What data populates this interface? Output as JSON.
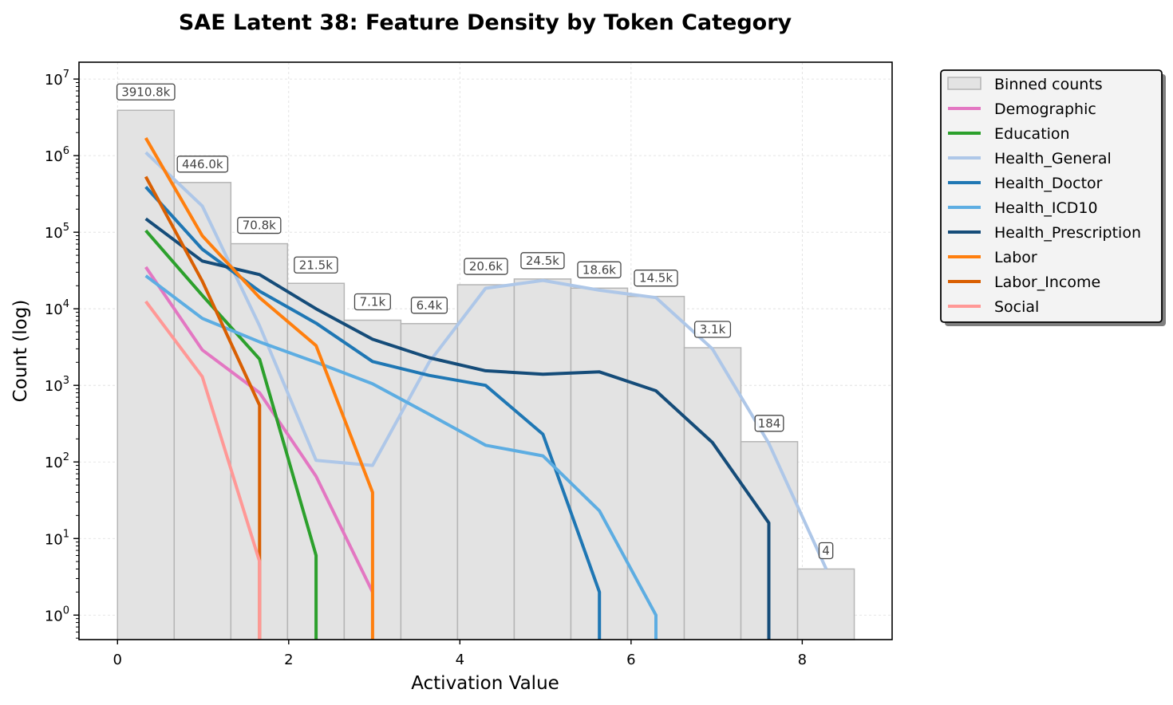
{
  "chart_data": {
    "type": "histogram_with_lines",
    "title": "SAE Latent 38: Feature Density by Token Category",
    "xlabel": "Activation Value",
    "ylabel": "Count (log)",
    "xlim": [
      -0.45,
      9.05
    ],
    "ylim_log10": [
      -0.32,
      7.22
    ],
    "y_scale": "log",
    "x_ticks": [
      0,
      2,
      4,
      6,
      8
    ],
    "y_ticks": [
      {
        "exp": 0,
        "label": "10",
        "sup": "0"
      },
      {
        "exp": 1,
        "label": "10",
        "sup": "1"
      },
      {
        "exp": 2,
        "label": "10",
        "sup": "2"
      },
      {
        "exp": 3,
        "label": "10",
        "sup": "3"
      },
      {
        "exp": 4,
        "label": "10",
        "sup": "4"
      },
      {
        "exp": 5,
        "label": "10",
        "sup": "5"
      },
      {
        "exp": 6,
        "label": "10",
        "sup": "6"
      },
      {
        "exp": 7,
        "label": "10",
        "sup": "7"
      }
    ],
    "grid": true,
    "legend_position": "outside-right-top",
    "bins": {
      "name": "Binned counts",
      "color": "#e3e3e3",
      "edge_color": "#b5b5b5",
      "edges": [
        0,
        0.6621,
        1.3243,
        1.9864,
        2.6486,
        3.3107,
        3.9728,
        4.635,
        5.2971,
        5.9593,
        6.6214,
        7.2835,
        7.9457,
        8.6078
      ],
      "counts": [
        3910800,
        446000,
        70800,
        21500,
        7100,
        6400,
        20600,
        24500,
        18600,
        14500,
        3100,
        184,
        4
      ],
      "labels": [
        "3910.8k",
        "446.0k",
        "70.8k",
        "21.5k",
        "7.1k",
        "6.4k",
        "20.6k",
        "24.5k",
        "18.6k",
        "14.5k",
        "3.1k",
        "184",
        "4"
      ]
    },
    "series": [
      {
        "name": "Demographic",
        "color": "#e377c2",
        "x": [
          0.33,
          0.99,
          1.66,
          2.32,
          2.98
        ],
        "y": [
          35000,
          2900,
          800,
          65,
          2
        ]
      },
      {
        "name": "Education",
        "color": "#2ca02c",
        "x": [
          0.33,
          0.99,
          1.66,
          2.32,
          2.32
        ],
        "y": [
          105000,
          15000,
          2200,
          6,
          0.45
        ]
      },
      {
        "name": "Health_General",
        "color": "#aec7e8",
        "x": [
          0.33,
          0.99,
          1.66,
          2.32,
          2.98,
          3.64,
          4.3,
          4.97,
          5.63,
          6.29,
          6.95,
          7.61,
          8.28
        ],
        "y": [
          1100000,
          220000,
          6000,
          105,
          90,
          2000,
          18500,
          23500,
          17500,
          14000,
          3000,
          175,
          4
        ]
      },
      {
        "name": "Health_Doctor",
        "color": "#1f77b4",
        "x": [
          0.33,
          0.99,
          1.66,
          2.32,
          2.98,
          3.64,
          4.3,
          4.97,
          5.63,
          5.63
        ],
        "y": [
          390000,
          60000,
          17000,
          6500,
          2050,
          1350,
          1000,
          230,
          2,
          0.45
        ]
      },
      {
        "name": "Health_ICD10",
        "color": "#5dade2",
        "x": [
          0.33,
          0.99,
          1.66,
          2.32,
          2.98,
          3.64,
          4.3,
          4.97,
          5.63,
          6.29,
          6.29
        ],
        "y": [
          27000,
          7500,
          3700,
          2000,
          1050,
          420,
          165,
          120,
          23,
          1,
          0.45
        ]
      },
      {
        "name": "Health_Prescription",
        "color": "#154c79",
        "x": [
          0.33,
          0.99,
          1.66,
          2.32,
          2.98,
          3.64,
          4.3,
          4.97,
          5.63,
          6.29,
          6.95,
          7.61,
          7.61
        ],
        "y": [
          150000,
          42000,
          28000,
          10000,
          4000,
          2300,
          1550,
          1400,
          1500,
          850,
          180,
          16,
          0.45
        ]
      },
      {
        "name": "Labor",
        "color": "#ff7f0e",
        "x": [
          0.33,
          0.99,
          1.66,
          2.32,
          2.98,
          2.98
        ],
        "y": [
          1700000,
          90000,
          14000,
          3300,
          40,
          0.45
        ]
      },
      {
        "name": "Labor_Income",
        "color": "#d95f02",
        "x": [
          0.33,
          0.99,
          1.66,
          1.66
        ],
        "y": [
          530000,
          23000,
          550,
          0.45
        ]
      },
      {
        "name": "Social",
        "color": "#ff9896",
        "x": [
          0.33,
          0.99,
          1.66,
          1.66
        ],
        "y": [
          12500,
          1300,
          5,
          0.45
        ]
      }
    ]
  }
}
